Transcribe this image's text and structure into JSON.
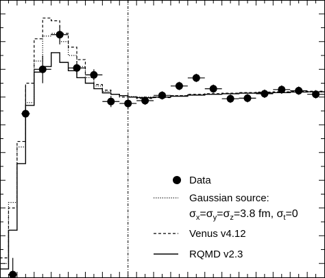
{
  "chart_data": {
    "type": "scatter",
    "title": "",
    "xlabel": "",
    "ylabel": "",
    "xlim": [
      0,
      19
    ],
    "ylim": [
      0.55,
      1.55
    ],
    "vline_x": 7.5,
    "legend": {
      "placement": "bottom-right",
      "entries": {
        "data": "Data",
        "gauss_line1": "Gaussian source:",
        "gauss_formula": {
          "sigma": "σ",
          "sub_x": "x",
          "eq1": "=",
          "sub_y": "y",
          "eq2": "=",
          "sub_z": "z",
          "tail": "=3.8 fm, ",
          "sub_t": "t",
          "tail2": "=0"
        },
        "venus": "Venus v4.12",
        "rqmd": "RQMD v2.3"
      }
    },
    "points": [
      {
        "x": 0.75,
        "y": 0.56,
        "xerr": 0.25,
        "yerr": 0.06
      },
      {
        "x": 1.5,
        "y": 1.14,
        "xerr": 0.25,
        "yerr": 0.1
      },
      {
        "x": 2.5,
        "y": 1.3,
        "xerr": 0.5,
        "yerr": 0.05
      },
      {
        "x": 3.5,
        "y": 1.425,
        "xerr": 0.5,
        "yerr": 0.035
      },
      {
        "x": 4.5,
        "y": 1.305,
        "xerr": 0.5,
        "yerr": 0.025
      },
      {
        "x": 5.5,
        "y": 1.28,
        "xerr": 0.5,
        "yerr": 0.02
      },
      {
        "x": 6.5,
        "y": 1.184,
        "xerr": 0.5,
        "yerr": 0.02
      },
      {
        "x": 7.5,
        "y": 1.177,
        "xerr": 0.5,
        "yerr": 0.02
      },
      {
        "x": 8.5,
        "y": 1.187,
        "xerr": 0.5,
        "yerr": 0.015
      },
      {
        "x": 9.5,
        "y": 1.206,
        "xerr": 0.5,
        "yerr": 0.015
      },
      {
        "x": 10.5,
        "y": 1.24,
        "xerr": 0.5,
        "yerr": 0.015
      },
      {
        "x": 11.5,
        "y": 1.269,
        "xerr": 0.5,
        "yerr": 0.015
      },
      {
        "x": 12.5,
        "y": 1.23,
        "xerr": 0.5,
        "yerr": 0.015
      },
      {
        "x": 13.5,
        "y": 1.194,
        "xerr": 0.5,
        "yerr": 0.015
      },
      {
        "x": 14.5,
        "y": 1.196,
        "xerr": 0.5,
        "yerr": 0.015
      },
      {
        "x": 15.5,
        "y": 1.212,
        "xerr": 0.5,
        "yerr": 0.015
      },
      {
        "x": 16.5,
        "y": 1.227,
        "xerr": 0.5,
        "yerr": 0.015
      },
      {
        "x": 17.5,
        "y": 1.223,
        "xerr": 0.5,
        "yerr": 0.015
      },
      {
        "x": 18.5,
        "y": 1.21,
        "xerr": 0.5,
        "yerr": 0.015
      }
    ],
    "series": [
      {
        "key": "gauss",
        "style": "dotted",
        "edges": [
          0,
          0.5,
          1,
          1.5,
          2,
          2.5,
          3,
          3.5,
          4,
          4.5,
          5,
          5.5,
          6,
          6.5,
          7,
          7.5,
          8,
          9,
          10,
          11,
          12,
          13,
          14,
          15,
          16,
          17,
          18,
          19
        ],
        "values": [
          0.6,
          0.82,
          1.02,
          1.18,
          1.33,
          1.42,
          1.43,
          1.4,
          1.35,
          1.31,
          1.27,
          1.24,
          1.22,
          1.21,
          1.205,
          1.202,
          1.2,
          1.2,
          1.205,
          1.208,
          1.21,
          1.212,
          1.214,
          1.215,
          1.216,
          1.218,
          1.218
        ]
      },
      {
        "key": "venus",
        "style": "dashed",
        "edges": [
          0,
          0.5,
          1,
          1.5,
          2,
          2.5,
          3,
          3.5,
          4,
          4.5,
          5,
          5.5,
          6,
          6.5,
          7,
          7.5,
          8,
          9,
          10,
          11,
          12,
          13,
          14,
          15,
          16,
          17,
          18,
          19
        ],
        "values": [
          0.62,
          0.8,
          1.04,
          1.25,
          1.41,
          1.485,
          1.475,
          1.43,
          1.38,
          1.335,
          1.28,
          1.245,
          1.225,
          1.21,
          1.2,
          1.2,
          1.195,
          1.198,
          1.205,
          1.21,
          1.212,
          1.214,
          1.216,
          1.218,
          1.219,
          1.22,
          1.221
        ]
      },
      {
        "key": "rqmd",
        "style": "solid",
        "edges": [
          0,
          0.5,
          1,
          1.5,
          2,
          2.5,
          3,
          3.5,
          4,
          4.5,
          5,
          5.5,
          6,
          6.5,
          7,
          7.5,
          8,
          9,
          10,
          11,
          12,
          13,
          14,
          15,
          16,
          17,
          18,
          19
        ],
        "values": [
          0.58,
          0.72,
          0.96,
          1.17,
          1.29,
          1.31,
          1.36,
          1.325,
          1.295,
          1.27,
          1.25,
          1.23,
          1.215,
          1.21,
          1.205,
          1.2,
          1.198,
          1.2,
          1.203,
          1.207,
          1.21,
          1.212,
          1.214,
          1.215,
          1.216,
          1.218,
          1.219
        ]
      }
    ]
  }
}
